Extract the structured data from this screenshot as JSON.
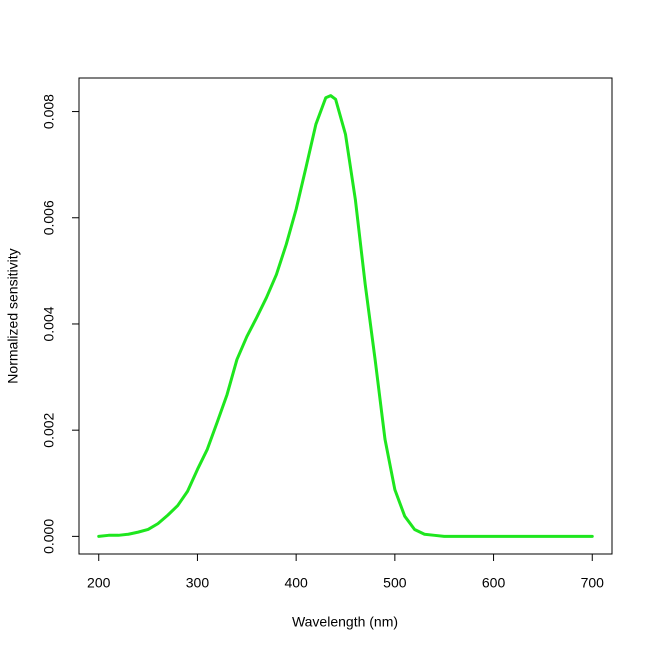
{
  "chart_data": {
    "type": "line",
    "x_label": "Wavelength (nm)",
    "y_label": "Normalized sensitivity",
    "x": [
      200,
      210,
      220,
      230,
      240,
      250,
      260,
      270,
      280,
      290,
      300,
      310,
      320,
      330,
      340,
      350,
      360,
      370,
      380,
      390,
      400,
      410,
      420,
      430,
      435,
      440,
      450,
      460,
      470,
      480,
      490,
      500,
      510,
      520,
      530,
      540,
      550,
      600,
      650,
      700
    ],
    "series": [
      {
        "color": "#1ee61e",
        "values": [
          0,
          2e-05,
          2e-05,
          4e-05,
          8e-05,
          0.00013,
          0.00024,
          0.0004,
          0.00058,
          0.00085,
          0.00126,
          0.00164,
          0.00215,
          0.00267,
          0.00333,
          0.00376,
          0.00412,
          0.0045,
          0.00493,
          0.0055,
          0.00616,
          0.00695,
          0.00776,
          0.00826,
          0.0083,
          0.00823,
          0.00757,
          0.00634,
          0.00474,
          0.00333,
          0.00183,
          0.00088,
          0.00038,
          0.00013,
          4e-05,
          2e-05,
          0,
          0,
          0,
          0
        ]
      }
    ],
    "xlim": [
      180,
      720
    ],
    "ylim": [
      -0.000332,
      0.008632
    ],
    "xticks": [
      200,
      300,
      400,
      500,
      600,
      700
    ],
    "yticks": [
      {
        "value": 0,
        "label": "0.000"
      },
      {
        "value": 0.002,
        "label": "0.002"
      },
      {
        "value": 0.004,
        "label": "0.004"
      },
      {
        "value": 0.006,
        "label": "0.006"
      },
      {
        "value": 0.008,
        "label": "0.008"
      }
    ]
  }
}
